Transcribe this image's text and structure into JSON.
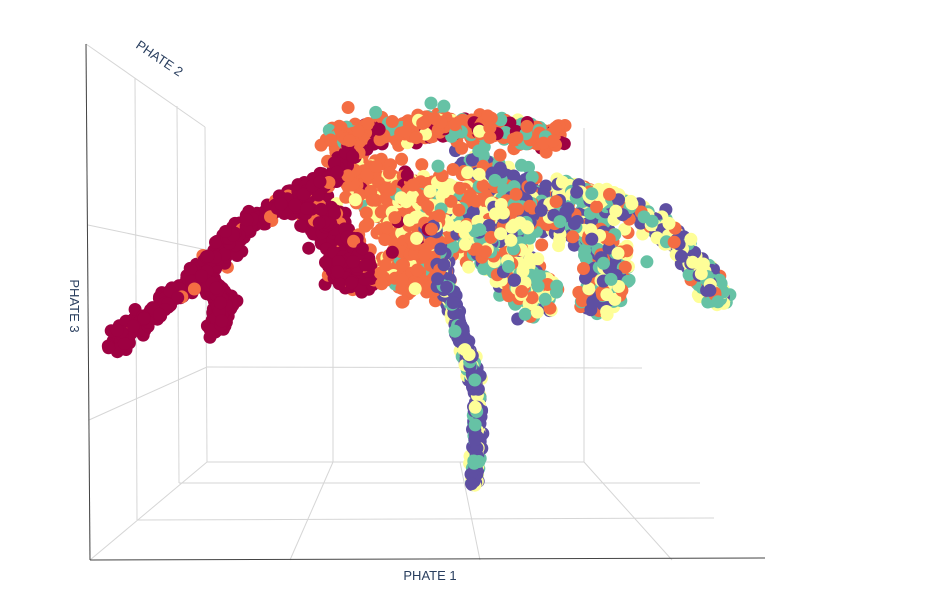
{
  "chart_data": {
    "type": "scatter",
    "projection": "3d",
    "xlabel": "PHATE 1",
    "ylabel": "PHATE 2",
    "zlabel": "PHATE 3",
    "grid": true,
    "legend": "none",
    "colors": [
      "#9e0142",
      "#f46d43",
      "#fefe98",
      "#66c2a5",
      "#5e4fa2"
    ],
    "point_count": 4800
  }
}
